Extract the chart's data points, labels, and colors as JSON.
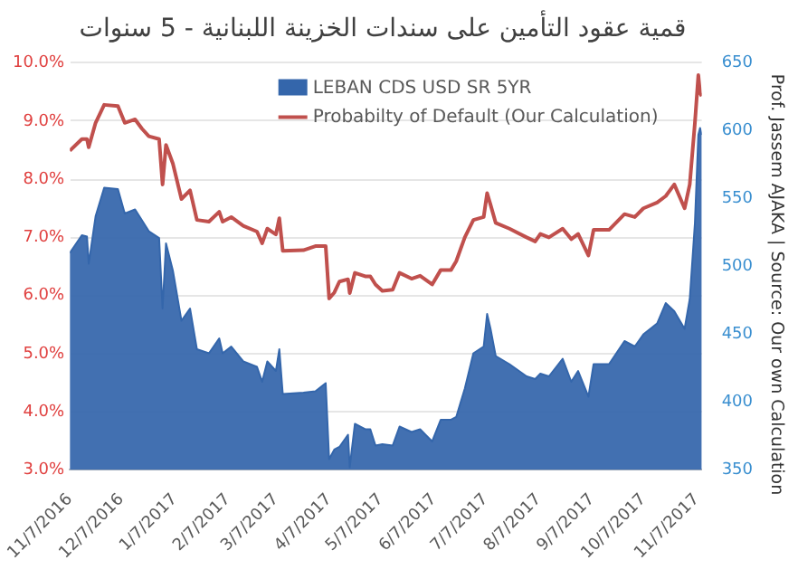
{
  "chart_data": {
    "type": "line",
    "title": "قمية عقود التأمين على سندات الخزينة اللبنانية - 5 سنوات",
    "annotations": [
      "Prof. Jassem AJAKA | Source: Our own Calculation"
    ],
    "x": [
      "2016-11-07",
      "2016-11-14",
      "2016-11-17",
      "2016-11-18",
      "2016-11-22",
      "2016-11-27",
      "2016-12-05",
      "2016-12-09",
      "2016-12-15",
      "2016-12-19",
      "2016-12-23",
      "2016-12-29",
      "2016-12-31",
      "2017-01-02",
      "2017-01-06",
      "2017-01-11",
      "2017-01-16",
      "2017-01-20",
      "2017-01-27",
      "2017-02-02",
      "2017-02-04",
      "2017-02-09",
      "2017-02-16",
      "2017-02-24",
      "2017-02-27",
      "2017-03-02",
      "2017-03-07",
      "2017-03-09",
      "2017-03-11",
      "2017-03-23",
      "2017-03-30",
      "2017-04-05",
      "2017-04-07",
      "2017-04-10",
      "2017-04-13",
      "2017-04-18",
      "2017-04-19",
      "2017-04-22",
      "2017-04-28",
      "2017-05-01",
      "2017-05-04",
      "2017-05-08",
      "2017-05-14",
      "2017-05-18",
      "2017-05-25",
      "2017-05-30",
      "2017-06-06",
      "2017-06-11",
      "2017-06-17",
      "2017-06-20",
      "2017-06-25",
      "2017-06-30",
      "2017-07-06",
      "2017-07-08",
      "2017-07-10",
      "2017-07-13",
      "2017-07-21",
      "2017-07-31",
      "2017-08-05",
      "2017-08-08",
      "2017-08-13",
      "2017-08-21",
      "2017-08-26",
      "2017-08-30",
      "2017-09-05",
      "2017-09-08",
      "2017-09-17",
      "2017-09-26",
      "2017-10-02",
      "2017-10-07",
      "2017-10-15",
      "2017-10-20",
      "2017-10-25",
      "2017-10-31",
      "2017-11-03",
      "2017-11-06",
      "2017-11-08",
      "2017-11-09",
      "2017-11-10"
    ],
    "series": [
      {
        "name": "LEBAN CDS USD SR 5YR",
        "type": "area",
        "axis": "y2",
        "color": "#3466ab",
        "values": [
          510,
          523,
          522,
          502,
          537,
          558,
          557,
          539,
          542,
          534,
          526,
          521,
          469,
          517,
          497,
          460,
          469,
          439,
          436,
          447,
          436,
          441,
          430,
          426,
          415,
          430,
          423,
          439,
          406,
          407,
          408,
          414,
          358,
          365,
          367,
          376,
          352,
          384,
          380,
          380,
          368,
          369,
          368,
          382,
          378,
          380,
          371,
          387,
          387,
          389,
          410,
          436,
          441,
          465,
          454,
          434,
          428,
          419,
          417,
          421,
          419,
          432,
          415,
          423,
          404,
          428,
          428,
          445,
          441,
          450,
          458,
          473,
          467,
          454,
          476,
          532,
          597,
          602,
          597
        ]
      },
      {
        "name": "Probabilty of Default (Our Calculation)",
        "type": "line",
        "axis": "y",
        "color": "#c0504d",
        "values": [
          8.49,
          8.69,
          8.69,
          8.55,
          8.97,
          9.28,
          9.26,
          8.97,
          9.03,
          8.87,
          8.74,
          8.69,
          7.91,
          8.59,
          8.27,
          7.66,
          7.81,
          7.3,
          7.27,
          7.44,
          7.27,
          7.35,
          7.2,
          7.1,
          6.9,
          7.15,
          7.05,
          7.33,
          6.77,
          6.78,
          6.85,
          6.85,
          5.95,
          6.05,
          6.24,
          6.28,
          6.04,
          6.39,
          6.33,
          6.33,
          6.19,
          6.08,
          6.1,
          6.39,
          6.29,
          6.34,
          6.19,
          6.44,
          6.44,
          6.59,
          7.0,
          7.3,
          7.35,
          7.76,
          7.56,
          7.25,
          7.15,
          7.0,
          6.93,
          7.06,
          7.0,
          7.15,
          6.97,
          7.06,
          6.69,
          7.13,
          7.13,
          7.4,
          7.35,
          7.5,
          7.6,
          7.71,
          7.91,
          7.5,
          7.91,
          8.97,
          9.79,
          9.48,
          9.43
        ]
      }
    ],
    "xlim": [
      "2016-11-07",
      "2017-11-10"
    ],
    "xticks": [
      {
        "value": "2016-11-07",
        "label": "11/7/2016"
      },
      {
        "value": "2016-12-07",
        "label": "12/7/2016"
      },
      {
        "value": "2017-01-07",
        "label": "1/7/2017"
      },
      {
        "value": "2017-02-07",
        "label": "2/7/2017"
      },
      {
        "value": "2017-03-07",
        "label": "3/7/2017"
      },
      {
        "value": "2017-04-07",
        "label": "4/7/2017"
      },
      {
        "value": "2017-05-07",
        "label": "5/7/2017"
      },
      {
        "value": "2017-06-07",
        "label": "6/7/2017"
      },
      {
        "value": "2017-07-07",
        "label": "7/7/2017"
      },
      {
        "value": "2017-08-07",
        "label": "8/7/2017"
      },
      {
        "value": "2017-09-07",
        "label": "9/7/2017"
      },
      {
        "value": "2017-10-07",
        "label": "10/7/2017"
      },
      {
        "value": "2017-11-07",
        "label": "11/7/2017"
      }
    ],
    "ylim": [
      3,
      10
    ],
    "yticks": [
      {
        "value": 3,
        "label": "3.0%"
      },
      {
        "value": 4,
        "label": "4.0%"
      },
      {
        "value": 5,
        "label": "5.0%"
      },
      {
        "value": 6,
        "label": "6.0%"
      },
      {
        "value": 7,
        "label": "7.0%"
      },
      {
        "value": 8,
        "label": "8.0%"
      },
      {
        "value": 9,
        "label": "9.0%"
      },
      {
        "value": 10,
        "label": "10.0%"
      }
    ],
    "y2lim": [
      350,
      650
    ],
    "y2ticks": [
      350,
      400,
      450,
      500,
      550,
      600,
      650
    ],
    "grid": "y",
    "legend": "top"
  }
}
